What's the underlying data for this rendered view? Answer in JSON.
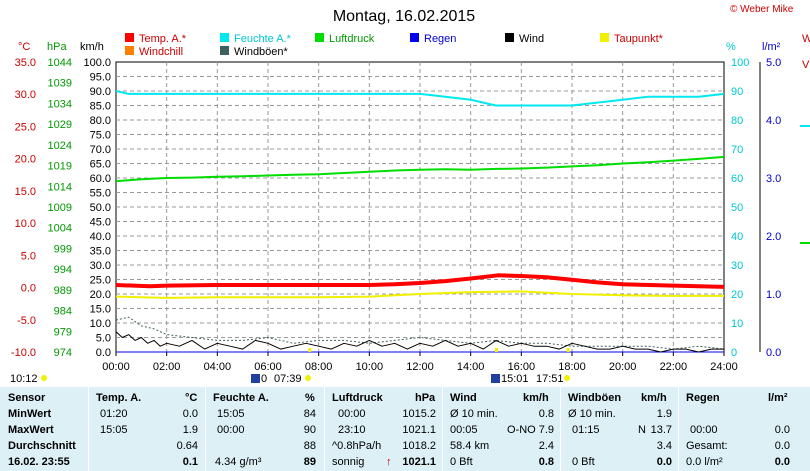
{
  "header": {
    "title": "Montag, 16.02.2015",
    "copyright": "© Weber Mike",
    "right_edge_labels": [
      "W",
      "V"
    ]
  },
  "legend": [
    {
      "label": "Temp. A.*",
      "color": "#ff0000"
    },
    {
      "label": "Feuchte A.*",
      "color": "#00e8f0"
    },
    {
      "label": "Luftdruck",
      "color": "#00dd00"
    },
    {
      "label": "Regen",
      "color": "#0000ee"
    },
    {
      "label": "Wind",
      "color": "#000000"
    },
    {
      "label": "Taupunkt*",
      "color": "#f0f000"
    },
    {
      "label": "Windchill",
      "color": "#ff8000"
    },
    {
      "label": "Windböen*",
      "color": "#406060"
    }
  ],
  "axis_units": {
    "celsius": "°C",
    "hpa": "hPa",
    "kmh": "km/h",
    "percent": "%",
    "rain": "l/m²"
  },
  "chart_data": {
    "type": "line",
    "x_unit": "hour",
    "xlim": [
      0,
      24
    ],
    "x_ticks": [
      "00:00",
      "02:00",
      "04:00",
      "06:00",
      "08:00",
      "10:00",
      "12:00",
      "14:00",
      "16:00",
      "18:00",
      "20:00",
      "22:00",
      "24:00"
    ],
    "y_axes": {
      "celsius": {
        "range": [
          -10,
          35
        ],
        "ticks": [
          "35.0",
          "30.0",
          "25.0",
          "20.0",
          "15.0",
          "10.0",
          "5.0",
          "0.0",
          "-5.0",
          "-10.0"
        ]
      },
      "hpa": {
        "range": [
          974,
          1044
        ],
        "ticks": [
          "1044",
          "1039",
          "1034",
          "1029",
          "1024",
          "1019",
          "1014",
          "1009",
          "1004",
          "999",
          "994",
          "989",
          "984",
          "979",
          "974"
        ]
      },
      "kmh": {
        "range": [
          0,
          100
        ],
        "ticks": [
          "100.0",
          "95.0",
          "90.0",
          "85.0",
          "80.0",
          "75.0",
          "70.0",
          "65.0",
          "60.0",
          "55.0",
          "50.0",
          "45.0",
          "40.0",
          "35.0",
          "30.0",
          "25.0",
          "20.0",
          "15.0",
          "10.0",
          "5.0",
          "0.0"
        ]
      },
      "percent": {
        "range": [
          0,
          100
        ],
        "ticks": [
          "100",
          "90",
          "80",
          "70",
          "60",
          "50",
          "40",
          "30",
          "20",
          "10",
          "0"
        ]
      },
      "rain": {
        "range": [
          0,
          5
        ],
        "ticks": [
          "5.0",
          "4.0",
          "3.0",
          "2.0",
          "1.0",
          "0.0"
        ]
      }
    },
    "series": [
      {
        "name": "Feuchte A.*",
        "axis": "percent",
        "color": "#00e8f0",
        "width": 2,
        "x": [
          0,
          0.5,
          1,
          2,
          4,
          6,
          8,
          10,
          12,
          13,
          14,
          14.5,
          15,
          16,
          17,
          18,
          19,
          20,
          21,
          22,
          23,
          24
        ],
        "y": [
          90,
          89,
          89,
          89,
          89,
          89,
          89,
          89,
          89,
          88,
          87,
          86,
          85,
          85,
          85,
          85,
          86,
          87,
          88,
          88,
          88,
          89
        ]
      },
      {
        "name": "Luftdruck",
        "axis": "hpa",
        "color": "#00dd00",
        "width": 2,
        "x": [
          0,
          1,
          2,
          3,
          4,
          5,
          6,
          7,
          8,
          9,
          10,
          11,
          12,
          13,
          14,
          15,
          16,
          17,
          18,
          19,
          20,
          21,
          22,
          23,
          24
        ],
        "y": [
          1015.2,
          1015.7,
          1016.0,
          1016.1,
          1016.3,
          1016.4,
          1016.6,
          1016.8,
          1016.9,
          1017.2,
          1017.5,
          1017.8,
          1018.0,
          1018.1,
          1018.0,
          1018.2,
          1018.3,
          1018.5,
          1018.8,
          1019.1,
          1019.5,
          1019.8,
          1020.2,
          1020.6,
          1021.1
        ]
      },
      {
        "name": "Temp. A.*",
        "axis": "celsius",
        "color": "#ff0000",
        "width": 4,
        "x": [
          0,
          1.33,
          2,
          4,
          6,
          8,
          10,
          11,
          12,
          13,
          14,
          15.08,
          16,
          17,
          18,
          19,
          20,
          22,
          24
        ],
        "y": [
          0.4,
          0.2,
          0.3,
          0.4,
          0.4,
          0.4,
          0.4,
          0.5,
          0.7,
          1.0,
          1.4,
          1.9,
          1.8,
          1.6,
          1.2,
          0.8,
          0.5,
          0.3,
          0.1
        ]
      },
      {
        "name": "Taupunkt*",
        "axis": "celsius",
        "color": "#f0f000",
        "width": 2,
        "x": [
          0,
          2,
          4,
          6,
          8,
          10,
          12,
          14,
          16,
          18,
          20,
          22,
          24
        ],
        "y": [
          -1.4,
          -1.6,
          -1.5,
          -1.5,
          -1.5,
          -1.4,
          -1.0,
          -0.7,
          -0.6,
          -1.0,
          -1.2,
          -1.3,
          -1.3
        ]
      },
      {
        "name": "Regen",
        "axis": "rain",
        "color": "#0000ee",
        "width": 1,
        "x": [
          0,
          24
        ],
        "y": [
          0.0,
          0.0
        ]
      },
      {
        "name": "Windböen*",
        "axis": "kmh",
        "color": "#406060",
        "width": 1,
        "dashed": true,
        "x": [
          0,
          0.5,
          1,
          1.5,
          2,
          3,
          4,
          5,
          6,
          7,
          8,
          9,
          10,
          11,
          12,
          13,
          14,
          15,
          16,
          17,
          18,
          19,
          20,
          21,
          22,
          23,
          24
        ],
        "y": [
          11,
          12,
          9,
          8,
          6,
          5,
          4,
          4,
          5,
          3,
          4,
          4,
          3,
          4,
          5,
          4,
          3,
          4,
          3,
          3,
          2,
          2,
          2,
          2,
          1,
          2,
          1
        ]
      },
      {
        "name": "Wind",
        "axis": "kmh",
        "color": "#000000",
        "width": 1,
        "x": [
          0,
          0.25,
          0.5,
          0.75,
          1,
          1.25,
          1.5,
          1.75,
          2,
          2.5,
          3,
          3.5,
          4,
          4.5,
          5,
          5.5,
          6,
          6.5,
          7,
          7.5,
          8,
          8.5,
          9,
          9.5,
          10,
          10.5,
          11,
          11.5,
          12,
          12.5,
          13,
          13.5,
          14,
          14.5,
          15,
          15.5,
          16,
          16.5,
          17,
          17.5,
          18,
          18.5,
          19,
          19.5,
          20,
          20.5,
          21,
          21.5,
          22,
          22.5,
          23,
          23.5,
          24
        ],
        "y": [
          7,
          5,
          6,
          4,
          5,
          3,
          4,
          2,
          3,
          2,
          4,
          1,
          3,
          2,
          1,
          4,
          3,
          1,
          2,
          3,
          2,
          1,
          3,
          2,
          4,
          2,
          3,
          1,
          3,
          2,
          4,
          2,
          3,
          1,
          4,
          2,
          3,
          2,
          2,
          1,
          3,
          2,
          1,
          1,
          2,
          1,
          1,
          0,
          1,
          1,
          0,
          1,
          1
        ]
      }
    ],
    "markers": [
      {
        "time": "10:12"
      },
      {
        "time": "07:39",
        "sunrise": "07:39",
        "label": "0"
      },
      {
        "time": "15:01",
        "label": "15:01"
      },
      {
        "time": "17:51",
        "label": "17:51"
      }
    ],
    "grid": true
  },
  "table": {
    "headers": {
      "sensor": "Sensor",
      "temp": "Temp. A.",
      "temp_unit": "°C",
      "humid": "Feuchte A.",
      "humid_unit": "%",
      "press": "Luftdruck",
      "press_unit": "hPa",
      "wind": "Wind",
      "wind_unit": "km/h",
      "gust": "Windböen",
      "gust_unit": "km/h",
      "rain": "Regen",
      "rain_unit": "l/m²"
    },
    "rows": {
      "min": {
        "label": "MinWert",
        "temp_time": "01:20",
        "temp_val": "0.0",
        "humid_time": "15:05",
        "humid_val": "84",
        "press_time": "00:00",
        "press_val": "1015.2",
        "wind_label": "Ø 10 min.",
        "wind_val": "0.8",
        "gust_label": "Ø 10 min.",
        "gust_val": "1.9"
      },
      "max": {
        "label": "MaxWert",
        "temp_time": "15:05",
        "temp_val": "1.9",
        "humid_time": "00:00",
        "humid_val": "90",
        "press_time": "23:10",
        "press_val": "1021.1",
        "wind_time": "00:05",
        "wind_dir": "O-NO",
        "wind_val": "7.9",
        "gust_time": "01:15",
        "gust_dir": "N",
        "gust_val": "13.7",
        "rain_time": "00:00",
        "rain_val": "0.0"
      },
      "avg": {
        "label": "Durchschnitt",
        "temp_val": "0.64",
        "humid_val": "88",
        "press_trend": "^0.8hPa/h",
        "press_val": "1018.2",
        "wind_dist": "58.4 km",
        "wind_val": "2.4",
        "gust_val": "3.4",
        "rain_label": "Gesamt:",
        "rain_val": "0.0"
      },
      "now": {
        "label": "16.02. 23:55",
        "temp_val": "0.1",
        "humid_abs": "4.34 g/m³",
        "humid_val": "89",
        "press_text": "sonnig",
        "press_arrow": "↑",
        "press_val": "1021.1",
        "wind_bft": "0 Bft",
        "wind_val": "0.8",
        "gust_bft": "0 Bft",
        "gust_val": "0.0",
        "rain_rate": "0.0 l/m²",
        "rain_val": "0.0"
      }
    }
  }
}
